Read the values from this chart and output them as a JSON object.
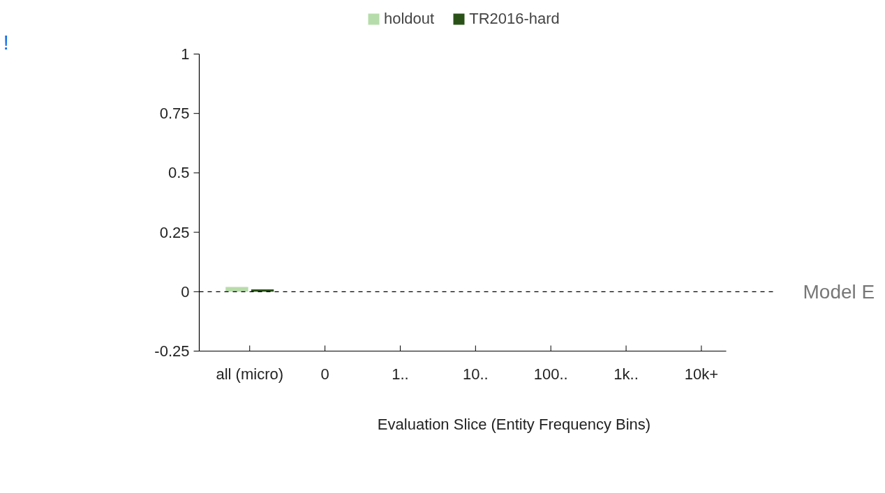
{
  "chart_data": {
    "type": "bar",
    "categories": [
      "all (micro)",
      "0",
      "1..",
      "10..",
      "100..",
      "1k..",
      "10k+"
    ],
    "xlabel": "Evaluation Slice (Entity Frequency Bins)",
    "series": [
      {
        "name": "holdout",
        "color": "#b7dcab",
        "values": [
          0.02,
          null,
          null,
          null,
          null,
          null,
          null
        ]
      },
      {
        "name": "TR2016-hard",
        "color": "#2a5218",
        "values": [
          0.01,
          null,
          null,
          null,
          null,
          null,
          null
        ]
      }
    ],
    "ylim": [
      -0.25,
      1
    ],
    "yticks": [
      -0.25,
      0,
      0.25,
      0.5,
      0.75,
      1
    ],
    "ref_lines": [
      {
        "axis": "y",
        "value": 0,
        "label": "Model E",
        "color": "#000000",
        "line_style": "dashed"
      }
    ],
    "annotations": [
      "!"
    ],
    "grid": false,
    "legend": "top"
  }
}
